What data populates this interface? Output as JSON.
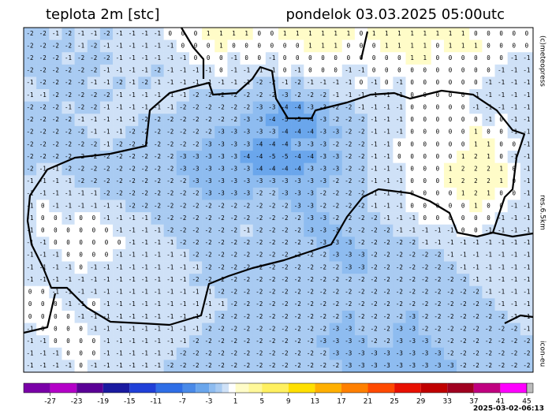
{
  "header": {
    "title": "teplota 2m [stc]",
    "datetime": "pondelok 03.03.2025 05:00utc"
  },
  "side_labels": [
    "(c)meteopress",
    "res.6.5km",
    "icon-eu"
  ],
  "map": {
    "grid": [
      [
        -2,
        -2,
        -1,
        -2,
        -1,
        -1,
        -2,
        -1,
        -1,
        -1,
        -1,
        0,
        0,
        0,
        1,
        1,
        1,
        1,
        0,
        0,
        1,
        1,
        1,
        1,
        1,
        1,
        0,
        1,
        1,
        1,
        1,
        1,
        1,
        1,
        1,
        0,
        0,
        0,
        0,
        0
      ],
      [
        -2,
        -2,
        -2,
        -2,
        -1,
        -2,
        -1,
        -1,
        -1,
        -1,
        -1,
        -1,
        0,
        0,
        0,
        1,
        0,
        0,
        0,
        0,
        0,
        0,
        1,
        1,
        1,
        0,
        0,
        0,
        1,
        1,
        1,
        1,
        0,
        1,
        1,
        1,
        0,
        0,
        0,
        0
      ],
      [
        -2,
        -2,
        -2,
        -1,
        -2,
        -2,
        -2,
        -1,
        -1,
        -1,
        -1,
        -1,
        -1,
        0,
        0,
        0,
        -1,
        0,
        0,
        -1,
        0,
        0,
        0,
        0,
        0,
        0,
        0,
        0,
        0,
        0,
        1,
        1,
        0,
        0,
        0,
        0,
        0,
        0,
        -1,
        -1
      ],
      [
        -2,
        -2,
        -2,
        -2,
        -2,
        -2,
        -1,
        -1,
        -1,
        -1,
        -2,
        -1,
        -1,
        -1,
        -1,
        0,
        -1,
        -1,
        -1,
        -1,
        0,
        -1,
        0,
        0,
        0,
        -1,
        -1,
        0,
        0,
        0,
        0,
        0,
        0,
        0,
        0,
        0,
        0,
        -1,
        -1,
        -1
      ],
      [
        -1,
        -2,
        -2,
        -2,
        -2,
        -1,
        -1,
        -2,
        -1,
        -2,
        -1,
        -1,
        -1,
        -1,
        -1,
        -1,
        -1,
        -1,
        -2,
        -2,
        -1,
        -2,
        -1,
        -1,
        -1,
        -1,
        0,
        -1,
        0,
        -1,
        0,
        0,
        0,
        0,
        0,
        0,
        -1,
        -1,
        -1,
        -1
      ],
      [
        -1,
        -1,
        -2,
        -2,
        -2,
        -2,
        -2,
        -1,
        -1,
        -1,
        -1,
        -1,
        -1,
        -2,
        -2,
        -2,
        -2,
        -2,
        -2,
        -2,
        -3,
        -2,
        -2,
        -2,
        -1,
        -1,
        -1,
        -1,
        -1,
        -1,
        0,
        0,
        0,
        0,
        0,
        -1,
        -1,
        -1,
        -1,
        -1
      ],
      [
        -2,
        -2,
        -2,
        -1,
        -2,
        -2,
        -1,
        -1,
        -1,
        -1,
        -1,
        -1,
        -2,
        -2,
        -2,
        -2,
        -2,
        -2,
        -3,
        -3,
        -4,
        -4,
        -3,
        -3,
        -2,
        -2,
        -1,
        -1,
        -1,
        -1,
        0,
        0,
        0,
        0,
        0,
        -1,
        -1,
        -1,
        -1,
        -1
      ],
      [
        -2,
        -2,
        -2,
        -2,
        -1,
        -1,
        -1,
        -1,
        -1,
        -2,
        -2,
        -2,
        -2,
        -2,
        -2,
        -2,
        -2,
        -3,
        -3,
        -4,
        -5,
        -5,
        -4,
        -3,
        -2,
        -2,
        -2,
        -1,
        -1,
        -1,
        0,
        0,
        0,
        0,
        0,
        0,
        -1,
        0,
        -1,
        -1
      ],
      [
        -2,
        -2,
        -2,
        -2,
        -2,
        -1,
        -1,
        -1,
        -2,
        -2,
        -2,
        -2,
        -2,
        -2,
        -2,
        -3,
        -3,
        -3,
        -3,
        -3,
        -4,
        -4,
        -4,
        -3,
        -3,
        -2,
        -2,
        -1,
        -1,
        -1,
        0,
        0,
        0,
        0,
        0,
        1,
        0,
        0,
        -1,
        -1
      ],
      [
        -2,
        -2,
        -2,
        -2,
        -2,
        -2,
        -1,
        -2,
        -2,
        -2,
        -2,
        -2,
        -2,
        -2,
        -3,
        -3,
        -3,
        -3,
        -4,
        -4,
        -4,
        -3,
        -3,
        -3,
        -2,
        -2,
        -2,
        -1,
        -1,
        0,
        0,
        0,
        0,
        0,
        0,
        1,
        1,
        0,
        0,
        -1
      ],
      [
        -2,
        -2,
        -2,
        -2,
        -2,
        -2,
        -2,
        -2,
        -2,
        -2,
        -2,
        -2,
        -3,
        -3,
        -3,
        -3,
        -3,
        -4,
        -4,
        -5,
        -5,
        -4,
        -4,
        -3,
        -3,
        -2,
        -2,
        -1,
        -1,
        0,
        0,
        0,
        0,
        0,
        1,
        2,
        1,
        0,
        -1,
        -1
      ],
      [
        -2,
        -1,
        -1,
        -2,
        -2,
        -2,
        -2,
        -2,
        -2,
        -2,
        -2,
        -2,
        -3,
        -3,
        -3,
        -3,
        -3,
        -3,
        -4,
        -4,
        -4,
        -4,
        -3,
        -3,
        -3,
        -2,
        -2,
        -1,
        -1,
        -1,
        0,
        0,
        0,
        1,
        2,
        2,
        2,
        1,
        0,
        -1
      ],
      [
        -1,
        -1,
        -1,
        -1,
        -2,
        -2,
        -2,
        -2,
        -2,
        -2,
        -2,
        -2,
        -2,
        -3,
        -3,
        -3,
        -3,
        -3,
        -3,
        -3,
        -3,
        -3,
        -3,
        -3,
        -2,
        -2,
        -2,
        -1,
        -1,
        -1,
        0,
        0,
        0,
        1,
        2,
        2,
        2,
        1,
        0,
        -1
      ],
      [
        -1,
        -1,
        -1,
        -1,
        -1,
        -1,
        -2,
        -2,
        -2,
        -2,
        -2,
        -2,
        -2,
        -2,
        -3,
        -3,
        -3,
        -3,
        -2,
        -2,
        -3,
        -3,
        -3,
        -2,
        -2,
        -2,
        -2,
        -1,
        -1,
        -1,
        0,
        0,
        0,
        0,
        1,
        2,
        1,
        0,
        0,
        -1
      ],
      [
        -1,
        0,
        -1,
        -1,
        -1,
        -1,
        -1,
        -1,
        -2,
        -2,
        -2,
        -2,
        -2,
        -2,
        -2,
        -2,
        -2,
        -2,
        -2,
        -2,
        -2,
        -3,
        -3,
        -2,
        -2,
        -2,
        -2,
        -1,
        -1,
        -1,
        0,
        0,
        0,
        0,
        0,
        1,
        0,
        0,
        -1,
        -1
      ],
      [
        -1,
        0,
        0,
        -1,
        0,
        0,
        -1,
        -1,
        -1,
        -1,
        -2,
        -2,
        -2,
        -2,
        -2,
        -2,
        -2,
        -2,
        -2,
        -2,
        -2,
        -2,
        -3,
        -3,
        -2,
        -2,
        -2,
        -2,
        -1,
        -1,
        -1,
        0,
        0,
        0,
        0,
        0,
        0,
        -1,
        -1,
        -1
      ],
      [
        -1,
        0,
        0,
        0,
        0,
        0,
        0,
        -1,
        -1,
        -1,
        -1,
        -2,
        -2,
        -2,
        -2,
        -2,
        -2,
        -1,
        -2,
        -2,
        -2,
        -2,
        -3,
        -3,
        -3,
        -2,
        -2,
        -2,
        -2,
        -1,
        -1,
        -1,
        -1,
        -1,
        0,
        0,
        -1,
        -1,
        -1,
        -1
      ],
      [
        -1,
        -1,
        0,
        0,
        0,
        0,
        0,
        0,
        -1,
        -1,
        -1,
        -1,
        -2,
        -2,
        -2,
        -2,
        -2,
        -2,
        -2,
        -2,
        -2,
        -2,
        -2,
        -3,
        -3,
        -3,
        -2,
        -2,
        -2,
        -2,
        -2,
        -1,
        -1,
        -1,
        -1,
        -1,
        -1,
        -1,
        -1,
        -1
      ],
      [
        -1,
        -1,
        -1,
        0,
        0,
        0,
        0,
        -1,
        -1,
        -1,
        -1,
        -1,
        -1,
        -2,
        -2,
        -2,
        -2,
        -2,
        -2,
        -2,
        -2,
        -2,
        -2,
        -2,
        -3,
        -3,
        -3,
        -2,
        -2,
        -2,
        -2,
        -2,
        -2,
        -1,
        -1,
        -1,
        -1,
        -1,
        -1,
        -1
      ],
      [
        -1,
        -1,
        -1,
        -1,
        0,
        -1,
        -1,
        -1,
        -1,
        -1,
        -1,
        -1,
        -1,
        -1,
        -2,
        -2,
        -2,
        -2,
        -2,
        -2,
        -2,
        -2,
        -2,
        -2,
        -2,
        -3,
        -3,
        -2,
        -2,
        -2,
        -2,
        -2,
        -2,
        -2,
        -1,
        -1,
        -1,
        -1,
        -1,
        -1
      ],
      [
        -1,
        -1,
        -1,
        -1,
        -1,
        -1,
        -1,
        -1,
        -1,
        -1,
        -1,
        -1,
        -1,
        -2,
        -2,
        -2,
        -2,
        -2,
        -2,
        -2,
        -2,
        -2,
        -2,
        -2,
        -2,
        -2,
        -2,
        -2,
        -2,
        -2,
        -2,
        -2,
        -2,
        -2,
        -2,
        -1,
        -1,
        -1,
        -1,
        -1
      ],
      [
        0,
        0,
        -1,
        -1,
        -1,
        -1,
        -1,
        -1,
        -1,
        -1,
        -1,
        -1,
        -1,
        -1,
        -1,
        -2,
        -2,
        -2,
        -2,
        -2,
        -2,
        -2,
        -2,
        -2,
        -2,
        -2,
        -2,
        -2,
        -2,
        -2,
        -2,
        -2,
        -2,
        -2,
        -2,
        -2,
        -1,
        -1,
        -1,
        -1
      ],
      [
        0,
        0,
        0,
        -1,
        -1,
        0,
        -1,
        -1,
        -1,
        -1,
        -1,
        -1,
        -1,
        -1,
        -1,
        -1,
        -2,
        -2,
        -2,
        -2,
        -2,
        -2,
        -2,
        -2,
        -2,
        -2,
        -2,
        -2,
        -2,
        -2,
        -2,
        -2,
        -2,
        -2,
        -2,
        -2,
        -2,
        -1,
        -1,
        -1
      ],
      [
        0,
        0,
        0,
        0,
        -1,
        -1,
        -1,
        -1,
        -1,
        -1,
        -1,
        -1,
        -1,
        -1,
        -1,
        -2,
        -2,
        -2,
        -2,
        -2,
        -2,
        -2,
        -2,
        -2,
        -2,
        -3,
        -2,
        -2,
        -2,
        -2,
        -3,
        -2,
        -2,
        -2,
        -2,
        -2,
        -2,
        -2,
        -1,
        -1
      ],
      [
        -1,
        0,
        0,
        0,
        0,
        -1,
        -1,
        -1,
        -1,
        -1,
        -1,
        -1,
        -1,
        -1,
        -2,
        -2,
        -2,
        -2,
        -2,
        -2,
        -2,
        -2,
        -2,
        -2,
        -3,
        -3,
        -2,
        -2,
        -2,
        -3,
        -3,
        -2,
        -2,
        -2,
        -2,
        -2,
        -2,
        -2,
        -2,
        -1
      ],
      [
        -1,
        -1,
        0,
        0,
        0,
        0,
        -1,
        -1,
        -1,
        -1,
        -1,
        -1,
        -1,
        -2,
        -2,
        -2,
        -2,
        -2,
        -2,
        -2,
        -2,
        -2,
        -2,
        -3,
        -3,
        -3,
        -3,
        -2,
        -2,
        -3,
        -3,
        -3,
        -2,
        -2,
        -2,
        -2,
        -2,
        -2,
        -2,
        -2
      ],
      [
        -1,
        -1,
        -1,
        0,
        0,
        0,
        -1,
        -1,
        -1,
        -1,
        -1,
        -1,
        -2,
        -2,
        -2,
        -2,
        -2,
        -2,
        -2,
        -2,
        -2,
        -2,
        -2,
        -2,
        -3,
        -3,
        -3,
        -3,
        -3,
        -3,
        -3,
        -3,
        -3,
        -2,
        -2,
        -2,
        -2,
        -2,
        -2,
        -2
      ],
      [
        -1,
        -1,
        -1,
        -1,
        0,
        -1,
        -1,
        -1,
        -1,
        -1,
        -1,
        -2,
        -2,
        -2,
        -2,
        -2,
        -2,
        -2,
        -2,
        -2,
        -2,
        -2,
        -2,
        -2,
        -2,
        -3,
        -3,
        -3,
        -3,
        -3,
        -3,
        -3,
        -3,
        -3,
        -2,
        -2,
        -2,
        -2,
        -2,
        -2
      ]
    ]
  },
  "colorbar": {
    "bounds": [
      -31,
      -27,
      -23,
      -19,
      -15,
      -11,
      -7,
      -5,
      -3,
      -2,
      -1,
      0,
      1,
      3,
      5,
      9,
      13,
      17,
      21,
      25,
      29,
      33,
      37,
      41,
      45
    ],
    "colors": [
      "#7a00a8",
      "#b400c8",
      "#5a0096",
      "#1a1aa0",
      "#2040d8",
      "#2f6ee6",
      "#4a8ae8",
      "#6aa6ec",
      "#8ebcf0",
      "#a9cbf2",
      "#cfe1f7",
      "#ffffff",
      "#fffcc8",
      "#fff89a",
      "#fff060",
      "#ffe000",
      "#ffb000",
      "#ff8000",
      "#ff4a00",
      "#e81000",
      "#c00000",
      "#a00020",
      "#c00080",
      "#ff00ff"
    ],
    "ticks": [
      -27,
      -23,
      -19,
      -15,
      -11,
      -7,
      -3,
      1,
      5,
      9,
      13,
      17,
      21,
      25,
      29,
      33,
      37,
      41,
      45
    ]
  },
  "footer": {
    "timestamp": "2025-03-02-06:13"
  }
}
